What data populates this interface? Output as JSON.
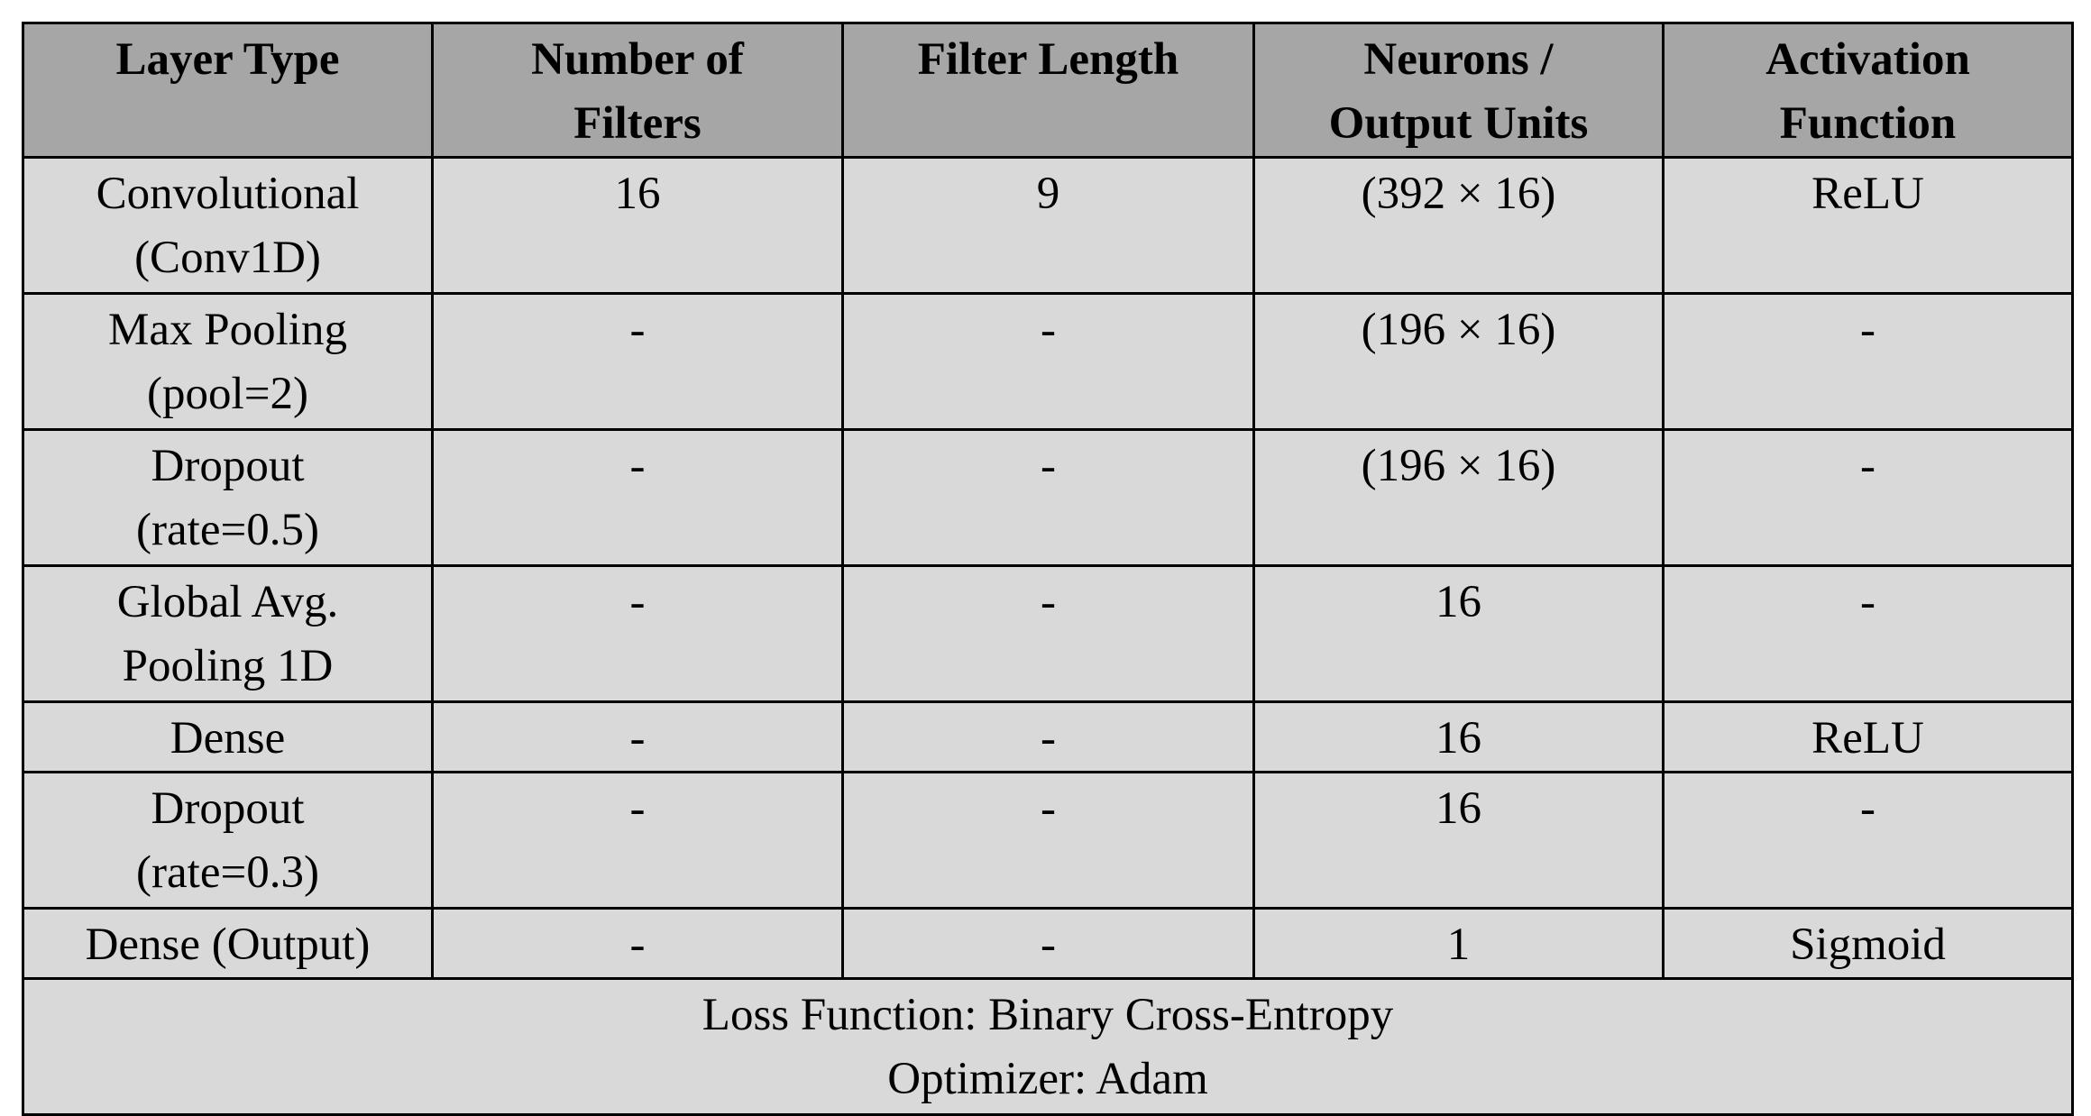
{
  "table": {
    "header": [
      "Layer Type",
      "Number of\nFilters",
      "Filter Length",
      "Neurons /\nOutput Units",
      "Activation\nFunction"
    ],
    "rows": [
      [
        "Convolutional\n(Conv1D)",
        "16",
        "9",
        "(392 × 16)",
        "ReLU"
      ],
      [
        "Max Pooling\n(pool=2)",
        "-",
        "-",
        "(196 × 16)",
        "-"
      ],
      [
        "Dropout\n(rate=0.5)",
        "-",
        "-",
        "(196 × 16)",
        "-"
      ],
      [
        "Global Avg.\nPooling 1D",
        "-",
        "-",
        "16",
        "-"
      ],
      [
        "Dense",
        "-",
        "-",
        "16",
        "ReLU"
      ],
      [
        "Dropout\n(rate=0.3)",
        "-",
        "-",
        "16",
        "-"
      ],
      [
        "Dense (Output)",
        "-",
        "-",
        "1",
        "Sigmoid"
      ]
    ],
    "footer": "Loss Function: Binary Cross-Entropy\nOptimizer: Adam"
  }
}
